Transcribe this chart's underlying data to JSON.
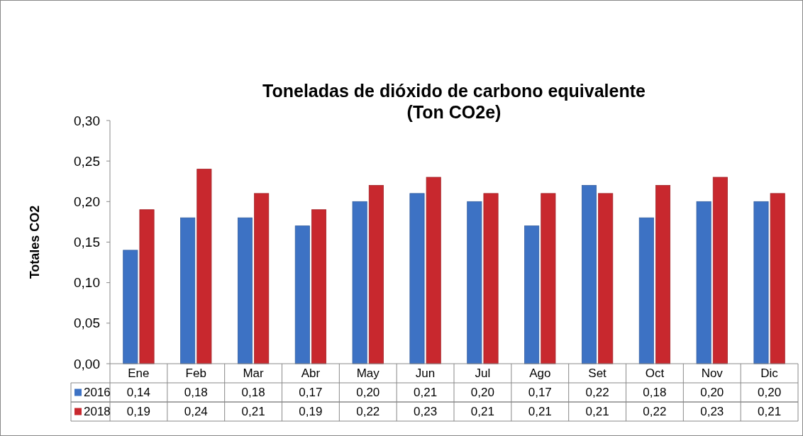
{
  "chart_data": {
    "type": "bar",
    "title": "Toneladas de dióxido de carbono equivalente\n(Ton CO2e)",
    "ylabel": "Totales CO2",
    "categories": [
      "Ene",
      "Feb",
      "Mar",
      "Abr",
      "May",
      "Jun",
      "Jul",
      "Ago",
      "Set",
      "Oct",
      "Nov",
      "Dic"
    ],
    "series": [
      {
        "name": "2016",
        "color": "#3d72c4",
        "values": [
          0.14,
          0.18,
          0.18,
          0.17,
          0.2,
          0.21,
          0.2,
          0.17,
          0.22,
          0.18,
          0.2,
          0.2
        ],
        "value_labels": [
          "0,14",
          "0,18",
          "0,18",
          "0,17",
          "0,20",
          "0,21",
          "0,20",
          "0,17",
          "0,22",
          "0,18",
          "0,20",
          "0,20"
        ]
      },
      {
        "name": "2018",
        "color": "#c8282e",
        "values": [
          0.19,
          0.24,
          0.21,
          0.19,
          0.22,
          0.23,
          0.21,
          0.21,
          0.21,
          0.22,
          0.23,
          0.21
        ],
        "value_labels": [
          "0,19",
          "0,24",
          "0,21",
          "0,19",
          "0,22",
          "0,23",
          "0,21",
          "0,21",
          "0,21",
          "0,22",
          "0,23",
          "0,21"
        ]
      }
    ],
    "ylim": [
      0,
      0.3
    ],
    "yticks": [
      {
        "value": 0,
        "label": "0,00"
      },
      {
        "value": 0.05,
        "label": "0,05"
      },
      {
        "value": 0.1,
        "label": "0,10"
      },
      {
        "value": 0.15,
        "label": "0,15"
      },
      {
        "value": 0.2,
        "label": "0,20"
      },
      {
        "value": 0.25,
        "label": "0,25"
      },
      {
        "value": 0.3,
        "label": "0,30"
      }
    ],
    "legend": "bottom",
    "grid": false
  }
}
